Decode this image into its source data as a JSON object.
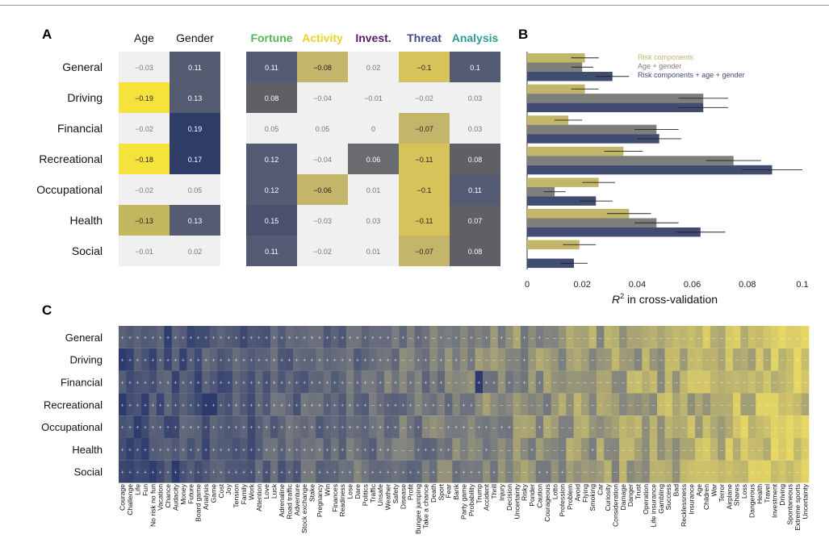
{
  "chart_data": [
    {
      "type": "heatmap",
      "panel_label": "A",
      "rows": [
        "General",
        "Driving",
        "Financial",
        "Recreational",
        "Occupational",
        "Health",
        "Social"
      ],
      "demographic_columns": [
        "Age",
        "Gender"
      ],
      "component_columns": [
        "Fortune",
        "Activity",
        "Invest.",
        "Threat",
        "Analysis"
      ],
      "component_colors": [
        "#59b559",
        "#e8d42e",
        "#5a1f6b",
        "#3f4a8c",
        "#2f9c8e"
      ],
      "values": [
        [
          "−0.03",
          "0.11",
          "0.11",
          "−0.08",
          "0.02",
          "−0.1",
          "0.1"
        ],
        [
          "−0.19",
          "0.13",
          "0.08",
          "−0.04",
          "−0.01",
          "−0.02",
          "0.03"
        ],
        [
          "−0.02",
          "0.19",
          "0.05",
          "0.05",
          "0",
          "−0.07",
          "0.03"
        ],
        [
          "−0.18",
          "0.17",
          "0.12",
          "−0.04",
          "0.06",
          "−0.11",
          "0.08"
        ],
        [
          "−0.02",
          "0.05",
          "0.12",
          "−0.06",
          "0.01",
          "−0.1",
          "0.11"
        ],
        [
          "−0.13",
          "0.13",
          "0.15",
          "−0.03",
          "0.03",
          "−0.11",
          "0.07"
        ],
        [
          "−0.01",
          "0.02",
          "0.11",
          "−0.02",
          "0.01",
          "−0.07",
          "0.08"
        ]
      ]
    },
    {
      "type": "bar",
      "orientation": "horizontal",
      "panel_label": "B",
      "categories": [
        "General",
        "Driving",
        "Financial",
        "Recreational",
        "Occupational",
        "Health",
        "Social"
      ],
      "series": [
        {
          "name": "Risk components",
          "color": "#c2b66a",
          "values": [
            0.021,
            0.021,
            0.015,
            0.035,
            0.026,
            0.037,
            0.019
          ],
          "errors": [
            0.005,
            0.005,
            0.005,
            0.007,
            0.006,
            0.008,
            0.006
          ]
        },
        {
          "name": "Age + gender",
          "color": "#7e7e7b",
          "values": [
            0.02,
            0.064,
            0.047,
            0.075,
            0.01,
            0.047,
            0.0
          ],
          "errors": [
            0.004,
            0.009,
            0.008,
            0.01,
            0.004,
            0.008,
            0.0
          ]
        },
        {
          "name": "Risk components + age + gender",
          "color": "#404d70",
          "values": [
            0.031,
            0.064,
            0.048,
            0.089,
            0.025,
            0.063,
            0.017
          ],
          "errors": [
            0.006,
            0.009,
            0.008,
            0.011,
            0.006,
            0.009,
            0.005
          ]
        }
      ],
      "xlabel_main": "R",
      "xlabel_sup": "2",
      "xlabel_rest": " in cross-validation",
      "xlim": [
        0,
        0.1
      ],
      "xticks": [
        "0",
        "0.02",
        "0.04",
        "0.06",
        "0.08",
        "0.1"
      ]
    },
    {
      "type": "heatmap",
      "panel_label": "C",
      "rows": [
        "General",
        "Driving",
        "Financial",
        "Recreational",
        "Occupational",
        "Health",
        "Social"
      ],
      "columns": [
        "Courage",
        "Challenge",
        "Life",
        "Fun",
        "No risk no fun",
        "Vacation",
        "Chance",
        "Audacity",
        "Money",
        "Future",
        "Board game",
        "Analysis",
        "Game",
        "Cost",
        "Joy",
        "Tension",
        "Family",
        "Work",
        "Attention",
        "Love",
        "Luck",
        "Adrenaline",
        "Road traffic",
        "Adventure",
        "Stock exchange",
        "Stake",
        "Pregnancy",
        "Win",
        "Finances",
        "Readiness",
        "Lose",
        "Dare",
        "Politics",
        "Traffic",
        "Unsafe",
        "Weather",
        "Safety",
        "Disease",
        "Profit",
        "Bungee jumping",
        "Take a chance",
        "Death",
        "Sport",
        "Fear",
        "Bank",
        "Party game",
        "Probability",
        "Trump",
        "Accident",
        "Thrill",
        "Injury",
        "Decision",
        "Uncertainty",
        "Risky",
        "Ponder",
        "Caution",
        "Courageous",
        "Lotto",
        "Profession",
        "Problem",
        "Avoid",
        "Flying",
        "Smoking",
        "Car",
        "Curiosity",
        "Consideration",
        "Damage",
        "Danger",
        "Trust",
        "Operation",
        "Life insurance",
        "Gambling",
        "Success",
        "Bad",
        "Recklessness",
        "Insurance",
        "Age",
        "Children",
        "War",
        "Terror",
        "Airplane",
        "Shares",
        "Loss",
        "Dangerous",
        "Health",
        "Travel",
        "Investment",
        "Driving",
        "Spontaneous",
        "Extreme sports",
        "Uncertainty"
      ],
      "value_scale": "correlation, blue = positive, yellow = negative"
    }
  ]
}
